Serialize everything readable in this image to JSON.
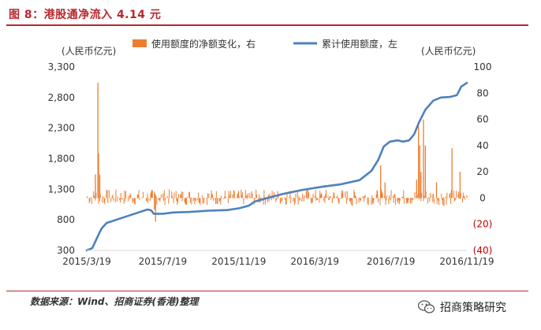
{
  "header": {
    "title": "图 8：港股通净流入 4.14 元"
  },
  "footer": {
    "source": "数据来源：Wind、招商证券(香港)整理",
    "brand": "招商策略研究"
  },
  "icons": {
    "brand_logo": "wechat-icon"
  },
  "colors": {
    "bar": "#ed7d31",
    "line": "#4f81bd",
    "accent": "#b7282e",
    "negative": "#c00000"
  },
  "chart_data": {
    "type": "bar+line",
    "x_dates": [
      "2015-03-19",
      "2016-11-21"
    ],
    "x_tick_labels": [
      "2015/3/19",
      "2015/7/19",
      "2015/11/19",
      "2016/3/19",
      "2016/7/19",
      "2016/11/19"
    ],
    "left_axis": {
      "unit": "(人民币亿元)",
      "ylim": [
        300,
        3300
      ],
      "ticks": [
        "300",
        "800",
        "1,300",
        "1,800",
        "2,300",
        "2,800",
        "3,300"
      ]
    },
    "right_axis": {
      "unit": "(人民币亿元)",
      "ylim": [
        -40,
        100
      ],
      "ticks": [
        "(40)",
        "(20)",
        "0",
        "20",
        "40",
        "60",
        "80",
        "100"
      ]
    },
    "legend": {
      "position": "top",
      "bar_series": "使用额度的净额变化，右",
      "line_series": "累计使用额度，左"
    },
    "series": [
      {
        "name": "累计使用额度，左",
        "type": "line",
        "axis": "left",
        "points": [
          [
            "2015-03-19",
            300
          ],
          [
            "2015-03-28",
            340
          ],
          [
            "2015-04-08",
            580
          ],
          [
            "2015-04-12",
            660
          ],
          [
            "2015-04-20",
            750
          ],
          [
            "2015-05-05",
            800
          ],
          [
            "2015-05-20",
            850
          ],
          [
            "2015-06-10",
            920
          ],
          [
            "2015-06-25",
            970
          ],
          [
            "2015-07-01",
            955
          ],
          [
            "2015-07-05",
            900
          ],
          [
            "2015-07-20",
            900
          ],
          [
            "2015-08-05",
            920
          ],
          [
            "2015-09-01",
            930
          ],
          [
            "2015-10-01",
            950
          ],
          [
            "2015-11-01",
            960
          ],
          [
            "2015-11-20",
            990
          ],
          [
            "2015-12-05",
            1030
          ],
          [
            "2015-12-15",
            1100
          ],
          [
            "2016-01-05",
            1160
          ],
          [
            "2016-02-01",
            1230
          ],
          [
            "2016-03-01",
            1290
          ],
          [
            "2016-04-01",
            1340
          ],
          [
            "2016-05-01",
            1380
          ],
          [
            "2016-06-01",
            1450
          ],
          [
            "2016-06-20",
            1600
          ],
          [
            "2016-07-01",
            1780
          ],
          [
            "2016-07-10",
            2000
          ],
          [
            "2016-07-20",
            2080
          ],
          [
            "2016-08-01",
            2100
          ],
          [
            "2016-08-10",
            2080
          ],
          [
            "2016-08-20",
            2100
          ],
          [
            "2016-08-28",
            2200
          ],
          [
            "2016-09-05",
            2400
          ],
          [
            "2016-09-15",
            2600
          ],
          [
            "2016-09-28",
            2750
          ],
          [
            "2016-10-10",
            2800
          ],
          [
            "2016-10-25",
            2810
          ],
          [
            "2016-11-05",
            2840
          ],
          [
            "2016-11-12",
            2980
          ],
          [
            "2016-11-21",
            3040
          ]
        ]
      },
      {
        "name": "使用额度的净额变化，右",
        "type": "bar",
        "axis": "right",
        "spikes": [
          [
            "2015-04-06",
            88
          ],
          [
            "2015-04-07",
            34
          ],
          [
            "2015-04-02",
            18
          ],
          [
            "2015-04-09",
            18
          ],
          [
            "2015-07-08",
            -18
          ],
          [
            "2015-07-06",
            -9
          ],
          [
            "2016-07-05",
            25
          ],
          [
            "2016-07-12",
            12
          ],
          [
            "2016-09-04",
            55
          ],
          [
            "2016-09-06",
            40
          ],
          [
            "2016-09-08",
            20
          ],
          [
            "2016-09-01",
            14
          ],
          [
            "2016-09-12",
            60
          ],
          [
            "2016-09-15",
            40
          ],
          [
            "2016-10-03",
            12
          ],
          [
            "2016-10-28",
            38
          ],
          [
            "2016-11-10",
            20
          ],
          [
            "2016-05-20",
            -6
          ],
          [
            "2016-10-15",
            -6
          ]
        ],
        "baseline_amplitude": 6
      }
    ]
  }
}
